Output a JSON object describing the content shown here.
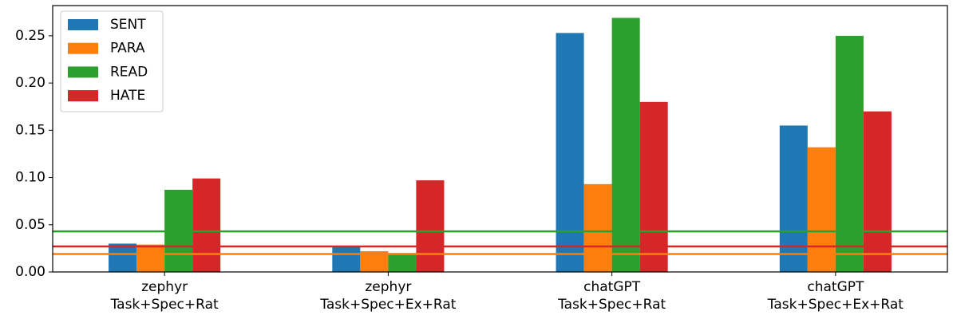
{
  "chart_data": {
    "type": "bar",
    "categories": [
      [
        "zephyr",
        "Task+Spec+Rat"
      ],
      [
        "zephyr",
        "Task+Spec+Ex+Rat"
      ],
      [
        "chatGPT",
        "Task+Spec+Rat"
      ],
      [
        "chatGPT",
        "Task+Spec+Ex+Rat"
      ]
    ],
    "series": [
      {
        "name": "SENT",
        "color": "#1f77b4",
        "values": [
          0.03,
          0.027,
          0.253,
          0.155
        ]
      },
      {
        "name": "PARA",
        "color": "#ff7f0e",
        "values": [
          0.029,
          0.022,
          0.093,
          0.132
        ],
        "baseline": 0.019
      },
      {
        "name": "READ",
        "color": "#2ca02c",
        "values": [
          0.087,
          0.02,
          0.269,
          0.25
        ],
        "baseline": 0.043
      },
      {
        "name": "HATE",
        "color": "#d62728",
        "values": [
          0.099,
          0.097,
          0.18,
          0.17
        ],
        "baseline": 0.027
      }
    ],
    "ylim": [
      0,
      0.282
    ],
    "yticks": [
      {
        "value": 0,
        "label": "0.00"
      },
      {
        "value": 0.05,
        "label": "0.05"
      },
      {
        "value": 0.1,
        "label": "0.10"
      },
      {
        "value": 0.15,
        "label": "0.15"
      },
      {
        "value": 0.2,
        "label": "0.20"
      },
      {
        "value": 0.25,
        "label": "0.25"
      }
    ],
    "legend": "upper left",
    "grid": false
  }
}
